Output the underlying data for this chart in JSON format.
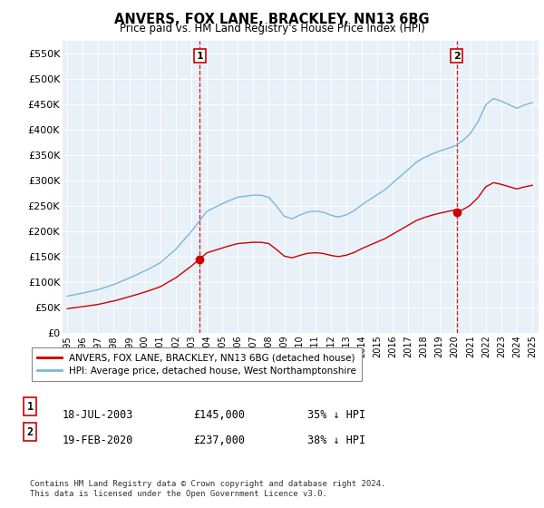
{
  "title": "ANVERS, FOX LANE, BRACKLEY, NN13 6BG",
  "subtitle": "Price paid vs. HM Land Registry's House Price Index (HPI)",
  "ylabel_ticks": [
    "£0",
    "£50K",
    "£100K",
    "£150K",
    "£200K",
    "£250K",
    "£300K",
    "£350K",
    "£400K",
    "£450K",
    "£500K",
    "£550K"
  ],
  "ytick_values": [
    0,
    50000,
    100000,
    150000,
    200000,
    250000,
    300000,
    350000,
    400000,
    450000,
    500000,
    550000
  ],
  "ylim": [
    0,
    575000
  ],
  "hpi_color": "#7ab8d8",
  "price_color": "#cc0000",
  "vline_color": "#cc0000",
  "transaction1_date_num": 2003.54,
  "transaction1_price": 145000,
  "transaction2_date_num": 2020.12,
  "transaction2_price": 237000,
  "legend_house_label": "ANVERS, FOX LANE, BRACKLEY, NN13 6BG (detached house)",
  "legend_hpi_label": "HPI: Average price, detached house, West Northamptonshire",
  "footer": "Contains HM Land Registry data © Crown copyright and database right 2024.\nThis data is licensed under the Open Government Licence v3.0.",
  "background_color": "#ffffff",
  "plot_bg_color": "#e8f0f8"
}
